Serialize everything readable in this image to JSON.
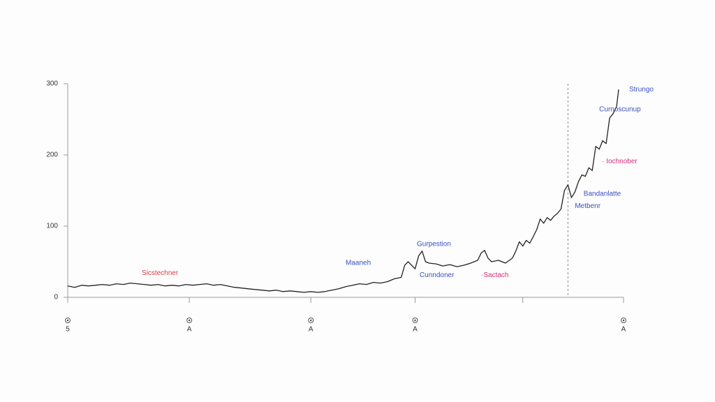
{
  "chart_data": {
    "type": "line",
    "x": [
      0,
      2,
      4,
      6,
      8,
      10,
      12,
      14,
      16,
      18,
      20,
      22,
      24,
      26,
      28,
      30,
      32,
      34,
      36,
      38,
      40,
      42,
      44,
      46,
      48,
      50,
      52,
      54,
      56,
      58,
      60,
      62,
      64,
      66,
      68,
      70,
      72,
      74,
      76,
      78,
      80,
      82,
      84,
      86,
      88,
      90,
      92,
      94,
      96,
      97,
      98,
      100,
      101,
      102,
      103,
      104,
      106,
      108,
      110,
      112,
      114,
      116,
      118,
      119,
      120,
      121,
      122,
      124,
      126,
      128,
      129,
      130,
      131,
      132,
      133,
      134,
      135,
      136,
      137,
      138,
      139,
      140,
      141,
      142,
      143,
      144,
      145,
      146,
      147,
      148,
      149,
      150,
      151,
      152,
      153,
      154,
      155,
      156,
      157,
      158,
      158.6
    ],
    "series": [
      {
        "color": "#222222",
        "values": [
          16,
          14,
          17,
          16,
          17,
          18,
          17,
          19,
          18,
          20,
          19,
          18,
          17,
          18,
          16,
          17,
          16,
          18,
          17,
          18,
          19,
          17,
          18,
          16,
          14,
          13,
          12,
          11,
          10,
          9,
          10,
          8,
          9,
          8,
          7,
          8,
          7,
          8,
          10,
          12,
          15,
          17,
          19,
          18,
          21,
          20,
          22,
          26,
          28,
          45,
          50,
          40,
          58,
          65,
          50,
          48,
          47,
          44,
          46,
          43,
          45,
          48,
          52,
          62,
          66,
          55,
          50,
          52,
          48,
          55,
          65,
          78,
          72,
          80,
          76,
          85,
          95,
          110,
          104,
          112,
          108,
          114,
          118,
          124,
          150,
          158,
          140,
          148,
          162,
          172,
          170,
          182,
          178,
          212,
          208,
          220,
          216,
          252,
          258,
          268,
          292
        ]
      }
    ],
    "xlim": [
      0,
      160
    ],
    "xticks": [
      {
        "value": 0,
        "label": "5"
      },
      {
        "value": 35,
        "label": "A"
      },
      {
        "value": 70,
        "label": "A"
      },
      {
        "value": 100,
        "label": "A"
      },
      {
        "value": 131,
        "label": null
      },
      {
        "value": 160,
        "label": "A"
      }
    ],
    "ylim": [
      0,
      300
    ],
    "yticks": [
      0,
      100,
      200,
      300
    ],
    "vline": 144,
    "annotations": [
      {
        "text": "Strungo",
        "x": 161.6,
        "y": 292,
        "color": "#3a4fc0"
      },
      {
        "text": "Curnoscunup",
        "x": 153,
        "y": 264,
        "color": "#3a4fc0"
      },
      {
        "text": "· Iochnober",
        "x": 153.8,
        "y": 191,
        "color": "#d0307a"
      },
      {
        "text": "Bandanlatte",
        "x": 148.5,
        "y": 145,
        "color": "#3a4fc0"
      },
      {
        "text": "Metbenr",
        "x": 146,
        "y": 128,
        "color": "#3a4fc0"
      },
      {
        "text": "Gurpestion",
        "x": 100.5,
        "y": 74.5,
        "color": "#3a4fc0"
      },
      {
        "text": "Maaneh",
        "x": 80,
        "y": 48,
        "color": "#3a4fc0"
      },
      {
        "text": "Cunndoner",
        "x": 101.3,
        "y": 31,
        "color": "#3a4fc0"
      },
      {
        "text": "·Sactach",
        "x": 119,
        "y": 31,
        "color": "#d0307a"
      },
      {
        "text": "Sicstechner",
        "x": 21.3,
        "y": 34,
        "color": "#d8404a"
      }
    ]
  }
}
